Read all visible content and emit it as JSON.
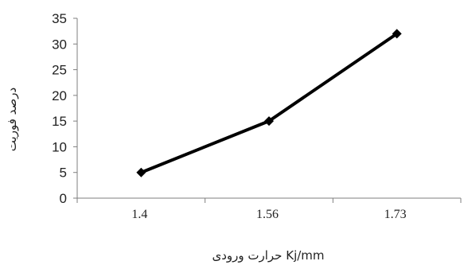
{
  "chart_data": {
    "type": "line",
    "categories": [
      "1.4",
      "1.56",
      "1.73"
    ],
    "series": [
      {
        "values": [
          5,
          15,
          32
        ]
      }
    ],
    "ylim": [
      0,
      35
    ],
    "yticks": [
      "0",
      "5",
      "10",
      "15",
      "20",
      "25",
      "30",
      "35"
    ],
    "xlabel": "حرارت ورودی Kj/mm",
    "ylabel": "درصد فوریت",
    "grid": false,
    "colors": {
      "line": "#000000",
      "axis": "#7f7f7f"
    },
    "marker": "diamond"
  }
}
